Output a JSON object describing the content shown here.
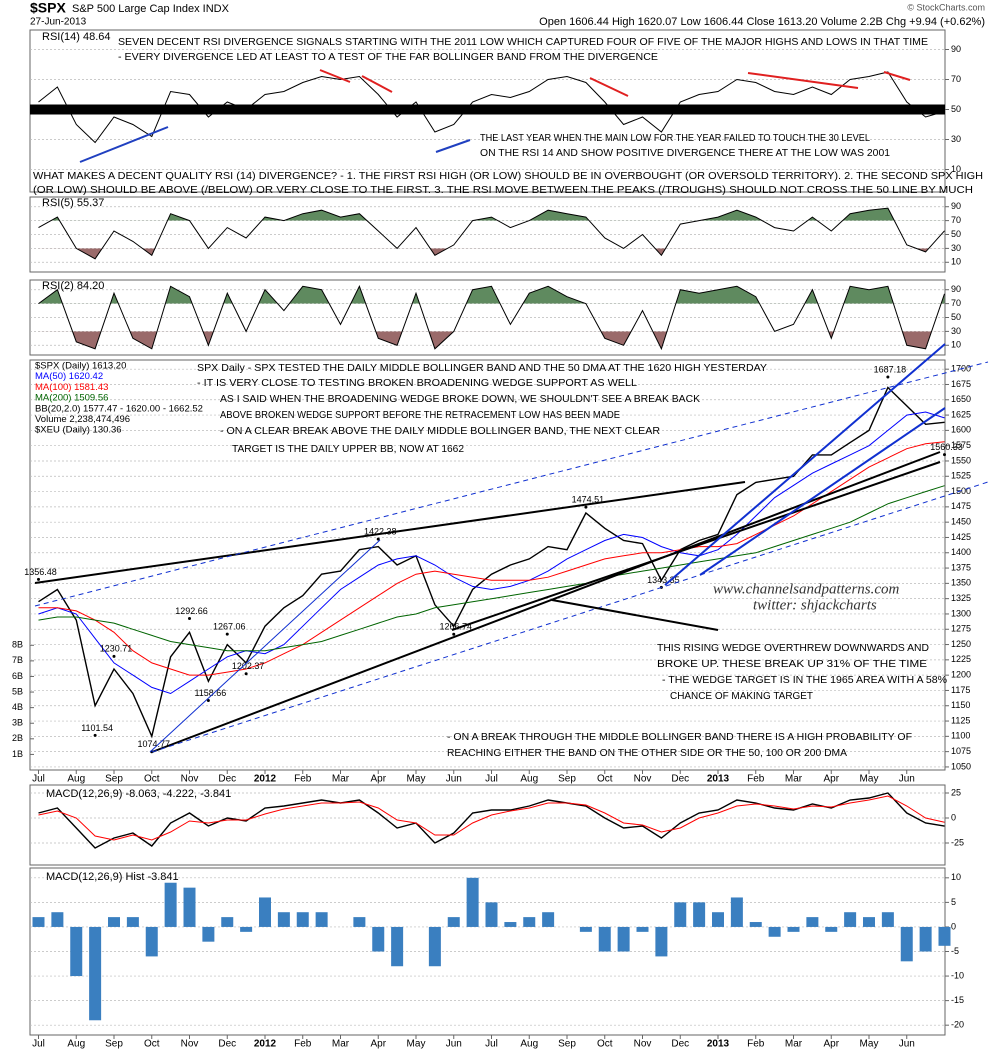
{
  "header": {
    "symbol": "$SPX",
    "name": "S&P 500 Large Cap Index INDX",
    "date": "27-Jun-2013",
    "quote": "Open 1606.44 High 1620.07 Low 1606.44 Close 1613.20 Volume 2.2B Chg +9.94 (+0.62%)",
    "credit": "© StockCharts.com"
  },
  "chart_data": [
    {
      "type": "line",
      "title": "RSI(14) 48.64",
      "color": "#000000",
      "values": [
        55,
        65,
        40,
        28,
        45,
        40,
        32,
        62,
        60,
        45,
        55,
        50,
        60,
        62,
        68,
        72,
        70,
        72,
        60,
        45,
        55,
        35,
        40,
        55,
        60,
        58,
        62,
        70,
        72,
        68,
        55,
        40,
        45,
        35,
        55,
        60,
        62,
        70,
        68,
        62,
        60,
        65,
        60,
        70,
        72,
        75,
        55,
        45,
        48.64
      ],
      "ylim": [
        -5,
        103
      ],
      "yticks": [
        10,
        30,
        50,
        70,
        90
      ],
      "grid": true,
      "annotations": [
        "SEVEN DECENT RSI DIVERGENCE SIGNALS STARTING WITH THE 2011 LOW WHICH CAPTURED FOUR OF FIVE OF THE MAJOR HIGHS AND LOWS IN THAT TIME",
        "- EVERY DIVERGENCE LED AT LEAST TO A TEST OF THE FAR BOLLINGER BAND FROM THE DIVERGENCE",
        "THE LAST YEAR WHEN THE MAIN LOW FOR THE YEAR FAILED TO TOUCH THE 30 LEVEL",
        "ON THE RSI 14 AND SHOW POSITIVE DIVERGENCE THERE AT THE LOW WAS 2001",
        "WHAT MAKES A DECENT QUALITY RSI (14) DIVERGENCE? - 1. THE FIRST RSI HIGH (OR LOW) SHOULD BE IN OVERBOUGHT (OR OVERSOLD TERRITORY). 2. THE SECOND SPX HIGH",
        "(OR LOW) SHOULD BE ABOVE (/BELOW) OR VERY CLOSE TO THE FIRST. 3. THE RSI MOVE BETWEEN THE PEAKS (/TROUGHS) SHOULD NOT CROSS THE 50 LINE BY MUCH"
      ]
    },
    {
      "type": "line",
      "title": "RSI(5) 55.37",
      "color": "#000000",
      "shade_colors": [
        "#5f8a5f",
        "#9a6a6a"
      ],
      "values": [
        60,
        75,
        30,
        15,
        55,
        40,
        20,
        80,
        70,
        30,
        60,
        45,
        75,
        70,
        80,
        85,
        75,
        80,
        55,
        30,
        60,
        20,
        35,
        70,
        75,
        60,
        70,
        85,
        80,
        75,
        45,
        30,
        50,
        20,
        65,
        70,
        75,
        85,
        75,
        60,
        55,
        75,
        55,
        80,
        85,
        88,
        35,
        25,
        55.37
      ],
      "ylim": [
        -4,
        104
      ],
      "yticks": [
        10,
        30,
        50,
        70,
        90
      ],
      "grid": true
    },
    {
      "type": "line",
      "title": "RSI(2) 84.20",
      "color": "#000000",
      "shade_colors": [
        "#5f8a5f",
        "#9a6a6a"
      ],
      "values": [
        70,
        90,
        15,
        5,
        85,
        20,
        5,
        95,
        80,
        10,
        85,
        30,
        90,
        60,
        95,
        90,
        40,
        95,
        20,
        10,
        85,
        5,
        30,
        90,
        95,
        40,
        85,
        95,
        80,
        70,
        20,
        10,
        60,
        5,
        90,
        85,
        90,
        95,
        80,
        30,
        40,
        90,
        20,
        95,
        90,
        95,
        10,
        5,
        84.2
      ],
      "ylim": [
        -4,
        104
      ],
      "yticks": [
        10,
        30,
        50,
        70,
        90
      ],
      "grid": true
    },
    {
      "type": "line",
      "categories": [
        "Jul",
        null,
        "Aug",
        null,
        "Sep",
        null,
        "Oct",
        null,
        "Nov",
        null,
        "Dec",
        null,
        "2012",
        null,
        "Feb",
        null,
        "Mar",
        null,
        "Apr",
        null,
        "May",
        null,
        "Jun",
        null,
        "Jul",
        null,
        "Aug",
        null,
        "Sep",
        null,
        "Oct",
        null,
        "Nov",
        null,
        "Dec",
        null,
        "2013",
        null,
        "Feb",
        null,
        "Mar",
        null,
        "Apr",
        null,
        "May",
        null,
        "Jun",
        null,
        null
      ],
      "series": [
        {
          "name": "$SPX (Daily) 1613.20",
          "color": "#000000",
          "values": [
            1320,
            1340,
            1290,
            1150,
            1210,
            1170,
            1100,
            1230,
            1270,
            1190,
            1250,
            1220,
            1280,
            1310,
            1330,
            1365,
            1370,
            1405,
            1410,
            1380,
            1395,
            1315,
            1280,
            1340,
            1365,
            1380,
            1390,
            1410,
            1405,
            1465,
            1440,
            1420,
            1415,
            1355,
            1405,
            1420,
            1430,
            1495,
            1515,
            1520,
            1525,
            1560,
            1560,
            1580,
            1600,
            1670,
            1640,
            1610,
            1613.2
          ]
        },
        {
          "name": "MA(50) 1620.42",
          "color": "#0000ff",
          "values": [
            1300,
            1310,
            1300,
            1260,
            1220,
            1200,
            1180,
            1170,
            1190,
            1210,
            1230,
            1240,
            1235,
            1250,
            1280,
            1310,
            1340,
            1360,
            1380,
            1390,
            1395,
            1380,
            1360,
            1345,
            1340,
            1345,
            1355,
            1370,
            1390,
            1405,
            1420,
            1430,
            1425,
            1410,
            1400,
            1395,
            1405,
            1430,
            1460,
            1490,
            1510,
            1530,
            1545,
            1560,
            1575,
            1600,
            1625,
            1630,
            1620.42
          ]
        },
        {
          "name": "MA(100) 1581.43",
          "color": "#ff0000",
          "values": [
            1310,
            1310,
            1305,
            1290,
            1270,
            1240,
            1220,
            1210,
            1200,
            1200,
            1205,
            1210,
            1220,
            1235,
            1250,
            1270,
            1290,
            1310,
            1330,
            1350,
            1365,
            1370,
            1365,
            1360,
            1355,
            1355,
            1355,
            1360,
            1370,
            1380,
            1390,
            1395,
            1400,
            1400,
            1405,
            1410,
            1410,
            1415,
            1430,
            1445,
            1460,
            1480,
            1500,
            1520,
            1540,
            1555,
            1570,
            1578,
            1581.43
          ]
        },
        {
          "name": "MA(200) 1509.56",
          "color": "#006400",
          "values": [
            1290,
            1295,
            1295,
            1290,
            1285,
            1275,
            1265,
            1255,
            1250,
            1245,
            1240,
            1240,
            1240,
            1245,
            1250,
            1255,
            1265,
            1275,
            1285,
            1295,
            1300,
            1310,
            1315,
            1320,
            1325,
            1330,
            1335,
            1340,
            1345,
            1350,
            1360,
            1365,
            1370,
            1375,
            1380,
            1385,
            1390,
            1395,
            1400,
            1410,
            1420,
            1430,
            1440,
            1450,
            1465,
            1480,
            1490,
            1500,
            1509.56
          ]
        }
      ],
      "extremes": [
        1356.48,
        null,
        null,
        1101.54,
        1230.71,
        null,
        1074.77,
        null,
        1292.66,
        1158.66,
        1267.06,
        1202.37,
        null,
        null,
        null,
        null,
        null,
        null,
        1422.38,
        null,
        null,
        null,
        1266.74,
        null,
        null,
        null,
        null,
        null,
        null,
        1474.51,
        null,
        null,
        null,
        1343.35,
        null,
        null,
        null,
        null,
        null,
        null,
        null,
        null,
        null,
        null,
        null,
        1687.18,
        null,
        null,
        1560.33
      ],
      "legend_extra": [
        "BB(20,2.0) 1577.47 - 1620.00 - 1662.52",
        "Volume 2,238,474,496",
        "$XEU (Daily) 130.36"
      ],
      "ylim": [
        1045,
        1715
      ],
      "yticks": [
        1050,
        1075,
        1100,
        1125,
        1150,
        1175,
        1200,
        1225,
        1250,
        1275,
        1300,
        1325,
        1350,
        1375,
        1400,
        1425,
        1450,
        1475,
        1500,
        1525,
        1550,
        1575,
        1600,
        1625,
        1650,
        1675,
        1700
      ],
      "grid": true,
      "volume_ylim": [
        0,
        26300000000
      ],
      "volume_ticks": [
        {
          "value": 1000000000,
          "label": "1B"
        },
        {
          "value": 2000000000,
          "label": "2B"
        },
        {
          "value": 3000000000,
          "label": "3B"
        },
        {
          "value": 4000000000,
          "label": "4B"
        },
        {
          "value": 5000000000,
          "label": "5B"
        },
        {
          "value": 6000000000,
          "label": "6B"
        },
        {
          "value": 7000000000,
          "label": "7B"
        },
        {
          "value": 8000000000,
          "label": "8B"
        }
      ],
      "annotations": [
        "SPX Daily - SPX TESTED THE DAILY MIDDLE BOLLINGER BAND AND THE 50 DMA AT THE 1620 HIGH YESTERDAY",
        "- IT IS VERY CLOSE TO TESTING BROKEN BROADENING WEDGE SUPPORT AS WELL",
        "AS I SAID WHEN THE BROADENING WEDGE BROKE DOWN, WE SHOULDN'T SEE A BREAK BACK",
        "ABOVE BROKEN WEDGE SUPPORT BEFORE THE RETRACEMENT LOW HAS BEEN MADE",
        "- ON A CLEAR BREAK ABOVE THE DAILY MIDDLE BOLLINGER BAND, THE NEXT CLEAR",
        "TARGET IS THE DAILY UPPER BB, NOW AT 1662",
        "THIS RISING WEDGE OVERTHREW DOWNWARDS AND",
        "BROKE UP. THESE BREAK UP 31% OF THE TIME",
        "- THE WEDGE TARGET IS IN THE 1965 AREA WITH A 58%",
        "CHANCE OF MAKING TARGET",
        "- ON A BREAK THROUGH THE MIDDLE BOLLINGER BAND THERE IS A HIGH PROBABILITY OF",
        "REACHING EITHER THE BAND ON THE OTHER SIDE OR THE 50, 100 OR 200 DMA"
      ],
      "watermark": [
        "www.channelsandpatterns.com",
        "twitter: shjackcharts"
      ]
    },
    {
      "type": "line",
      "title": "MACD(12,26,9) -8.063, -4.222, -3.841",
      "series": [
        {
          "color": "#000000",
          "values": [
            5,
            10,
            -10,
            -30,
            -20,
            -15,
            -28,
            -5,
            5,
            -8,
            0,
            -3,
            10,
            12,
            15,
            18,
            15,
            18,
            5,
            -10,
            -5,
            -25,
            -15,
            5,
            8,
            8,
            12,
            18,
            15,
            12,
            0,
            -10,
            -8,
            -20,
            -5,
            5,
            8,
            18,
            15,
            10,
            8,
            14,
            10,
            18,
            20,
            25,
            5,
            -5,
            -8.063
          ]
        },
        {
          "color": "#ff0000",
          "values": [
            3,
            7,
            0,
            -18,
            -22,
            -17,
            -22,
            -14,
            -3,
            -5,
            -2,
            -2,
            4,
            9,
            12,
            15,
            15,
            16,
            10,
            -2,
            -5,
            -17,
            -17,
            -5,
            3,
            7,
            10,
            15,
            15,
            13,
            5,
            -5,
            -7,
            -14,
            -10,
            0,
            5,
            12,
            14,
            12,
            9,
            12,
            11,
            15,
            18,
            22,
            12,
            0,
            -4.222
          ]
        }
      ],
      "ylim": [
        -47,
        33
      ],
      "yticks": [
        -25,
        0,
        25
      ],
      "grid": true
    },
    {
      "type": "bar",
      "title": "MACD(12,26,9) Hist -3.841",
      "color": "#3a7fc0",
      "categories": [
        "Jul",
        null,
        "Aug",
        null,
        "Sep",
        null,
        "Oct",
        null,
        "Nov",
        null,
        "Dec",
        null,
        "2012",
        null,
        "Feb",
        null,
        "Mar",
        null,
        "Apr",
        null,
        "May",
        null,
        "Jun",
        null,
        "Jul",
        null,
        "Aug",
        null,
        "Sep",
        null,
        "Oct",
        null,
        "Nov",
        null,
        "Dec",
        null,
        "2013",
        null,
        "Feb",
        null,
        "Mar",
        null,
        "Apr",
        null,
        "May",
        null,
        "Jun",
        null,
        null
      ],
      "values": [
        2,
        3,
        -10,
        -19,
        2,
        2,
        -6,
        9,
        8,
        -3,
        2,
        -1,
        6,
        3,
        3,
        3,
        0,
        2,
        -5,
        -8,
        0,
        -8,
        2,
        10,
        5,
        1,
        2,
        3,
        0,
        -1,
        -5,
        -5,
        -1,
        -6,
        5,
        5,
        3,
        6,
        1,
        -2,
        -1,
        2,
        -1,
        3,
        2,
        3,
        -7,
        -5,
        -3.841
      ],
      "ylim": [
        -22,
        12
      ],
      "yticks": [
        -20,
        -15,
        -10,
        -5,
        0,
        5,
        10
      ],
      "grid": true
    }
  ]
}
